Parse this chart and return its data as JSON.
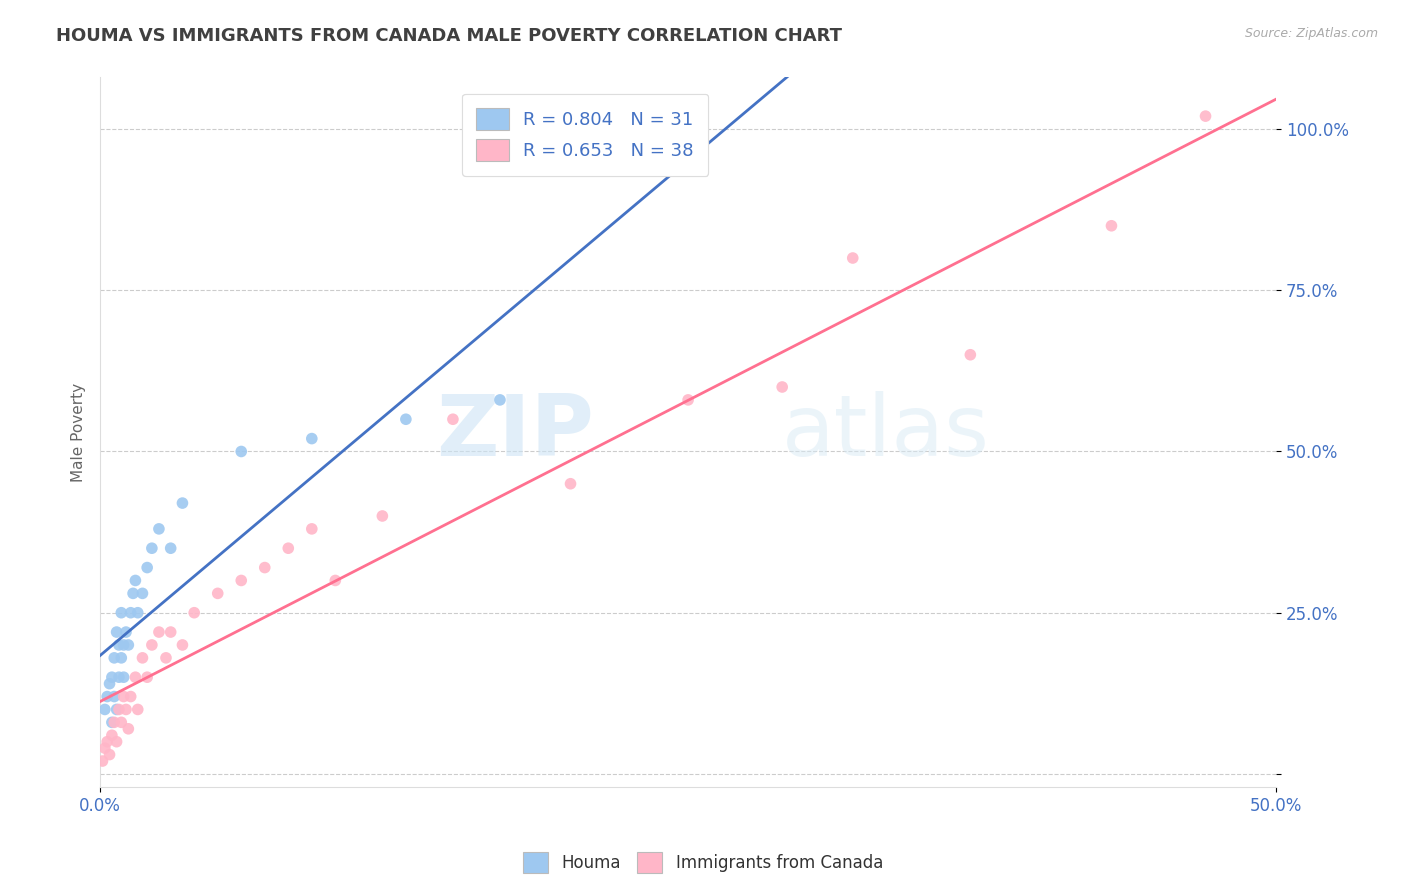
{
  "title": "HOUMA VS IMMIGRANTS FROM CANADA MALE POVERTY CORRELATION CHART",
  "source_text": "Source: ZipAtlas.com",
  "ylabel": "Male Poverty",
  "xlim": [
    0.0,
    0.5
  ],
  "ylim": [
    -0.02,
    1.08
  ],
  "ytick_vals": [
    0.0,
    0.25,
    0.5,
    0.75,
    1.0
  ],
  "ytick_labels": [
    "",
    "25.0%",
    "50.0%",
    "75.0%",
    "100.0%"
  ],
  "xtick_vals": [
    0.0,
    0.5
  ],
  "xtick_labels": [
    "0.0%",
    "50.0%"
  ],
  "legend_labels": [
    "R = 0.804   N = 31",
    "R = 0.653   N = 38"
  ],
  "legend_bottom_labels": [
    "Houma",
    "Immigrants from Canada"
  ],
  "houma_color": "#9ec8f0",
  "canada_color": "#ffb6c8",
  "houma_line_color": "#4472c4",
  "canada_line_color": "#ff7090",
  "watermark1": "ZIP",
  "watermark2": "atlas",
  "background_color": "#ffffff",
  "grid_color": "#cccccc",
  "title_color": "#404040",
  "axis_tick_color": "#4472c4",
  "houma_x": [
    0.002,
    0.003,
    0.004,
    0.005,
    0.005,
    0.006,
    0.006,
    0.007,
    0.007,
    0.008,
    0.008,
    0.009,
    0.009,
    0.01,
    0.01,
    0.011,
    0.012,
    0.013,
    0.014,
    0.015,
    0.016,
    0.018,
    0.02,
    0.022,
    0.025,
    0.03,
    0.035,
    0.06,
    0.09,
    0.13,
    0.17
  ],
  "houma_y": [
    0.1,
    0.12,
    0.14,
    0.08,
    0.15,
    0.12,
    0.18,
    0.1,
    0.22,
    0.15,
    0.2,
    0.18,
    0.25,
    0.2,
    0.15,
    0.22,
    0.2,
    0.25,
    0.28,
    0.3,
    0.25,
    0.28,
    0.32,
    0.35,
    0.38,
    0.35,
    0.42,
    0.5,
    0.52,
    0.55,
    0.58
  ],
  "canada_x": [
    0.001,
    0.002,
    0.003,
    0.004,
    0.005,
    0.006,
    0.007,
    0.008,
    0.009,
    0.01,
    0.011,
    0.012,
    0.013,
    0.015,
    0.016,
    0.018,
    0.02,
    0.022,
    0.025,
    0.028,
    0.03,
    0.035,
    0.04,
    0.05,
    0.06,
    0.07,
    0.08,
    0.09,
    0.1,
    0.12,
    0.15,
    0.2,
    0.25,
    0.29,
    0.32,
    0.37,
    0.43,
    0.47
  ],
  "canada_y": [
    0.02,
    0.04,
    0.05,
    0.03,
    0.06,
    0.08,
    0.05,
    0.1,
    0.08,
    0.12,
    0.1,
    0.07,
    0.12,
    0.15,
    0.1,
    0.18,
    0.15,
    0.2,
    0.22,
    0.18,
    0.22,
    0.2,
    0.25,
    0.28,
    0.3,
    0.32,
    0.35,
    0.38,
    0.3,
    0.4,
    0.55,
    0.45,
    0.58,
    0.6,
    0.8,
    0.65,
    0.85,
    1.02
  ]
}
